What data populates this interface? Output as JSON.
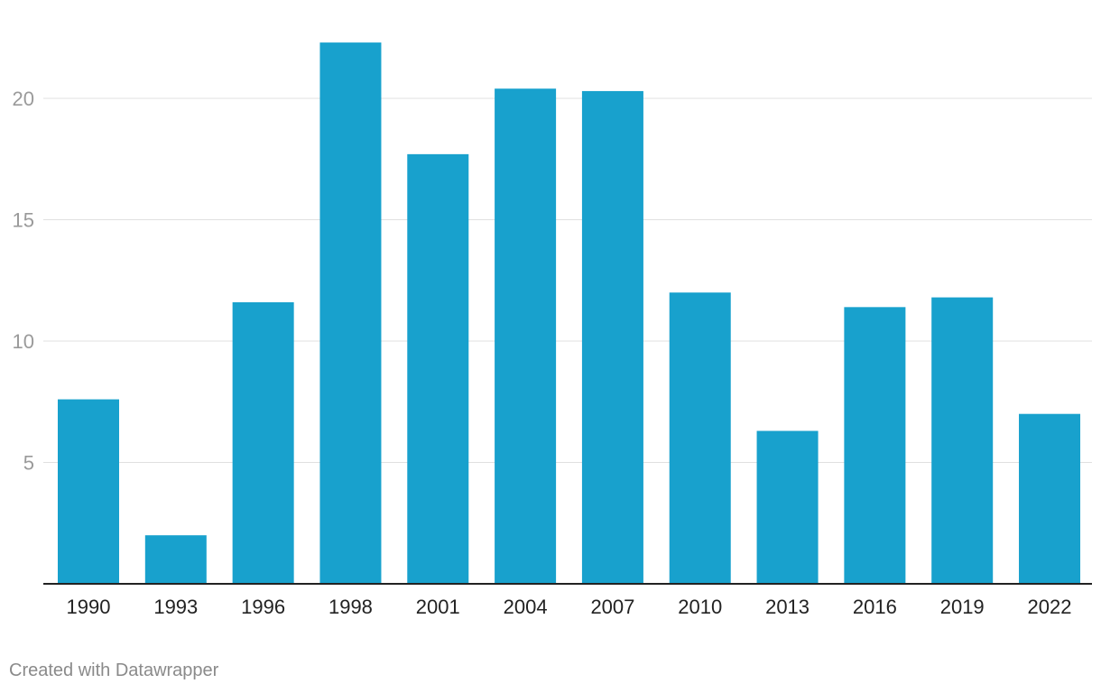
{
  "chart_data": {
    "type": "bar",
    "categories": [
      "1990",
      "1993",
      "1996",
      "1998",
      "2001",
      "2004",
      "2007",
      "2010",
      "2013",
      "2016",
      "2019",
      "2022"
    ],
    "values": [
      7.6,
      2.0,
      11.6,
      22.3,
      17.7,
      20.4,
      20.3,
      12.0,
      6.3,
      11.4,
      11.8,
      7.0
    ],
    "yticks": [
      5,
      10,
      15,
      20
    ],
    "ylim": [
      0,
      24
    ],
    "grid": true,
    "bar_color": "#18a1cd",
    "title": "",
    "xlabel": "",
    "ylabel": ""
  },
  "footer": {
    "credit": "Created with Datawrapper"
  }
}
